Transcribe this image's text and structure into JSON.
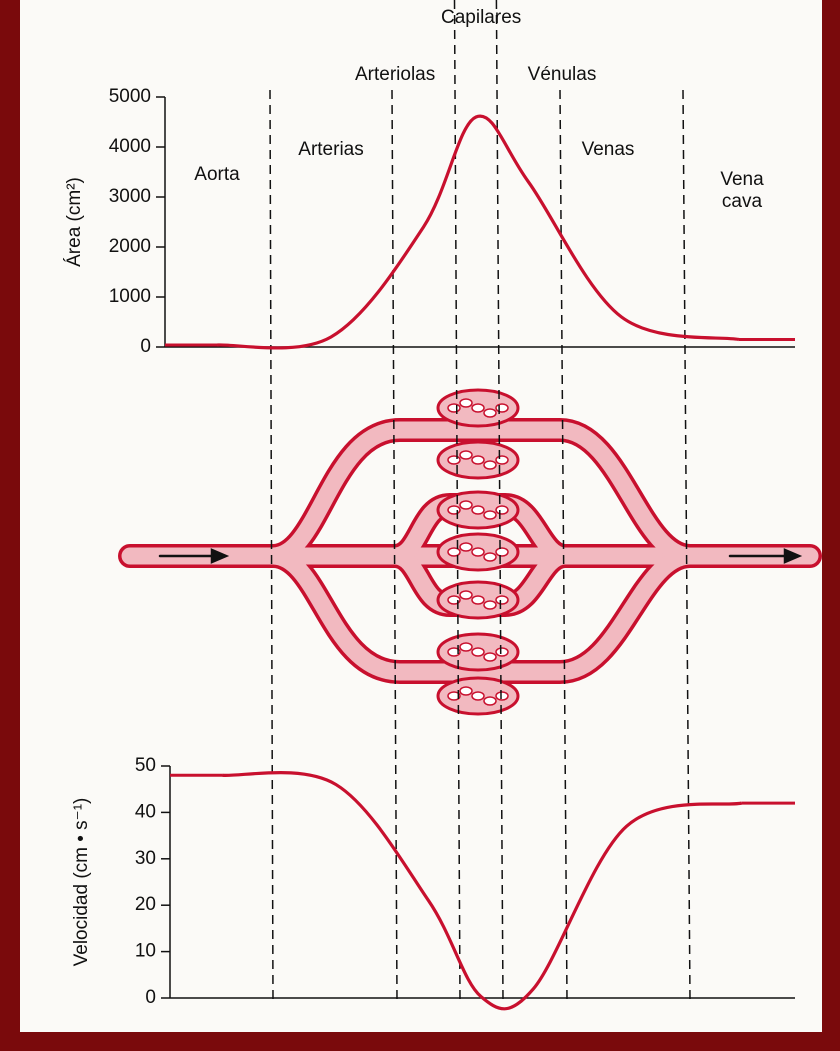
{
  "chart_data": [
    {
      "type": "line",
      "y_label": "Área (cm²)",
      "categories": [
        "Aorta",
        "Arterias",
        "Arteriolas",
        "Capilares",
        "Vénulas",
        "Venas",
        "Vena cava"
      ],
      "values": [
        40,
        200,
        2400,
        4600,
        3300,
        600,
        150
      ],
      "color": "#c8102e",
      "ylim": [
        0,
        5000
      ],
      "yticks": [
        0,
        1000,
        2000,
        3000,
        4000,
        5000
      ]
    },
    {
      "type": "line",
      "y_label": "Velocidad (cm • s⁻¹)",
      "values": [
        48,
        46,
        21,
        0.3,
        2,
        37,
        42
      ],
      "color": "#c8102e",
      "ylim": [
        0,
        50
      ],
      "yticks": [
        0,
        10,
        20,
        30,
        40,
        50
      ]
    }
  ]
}
